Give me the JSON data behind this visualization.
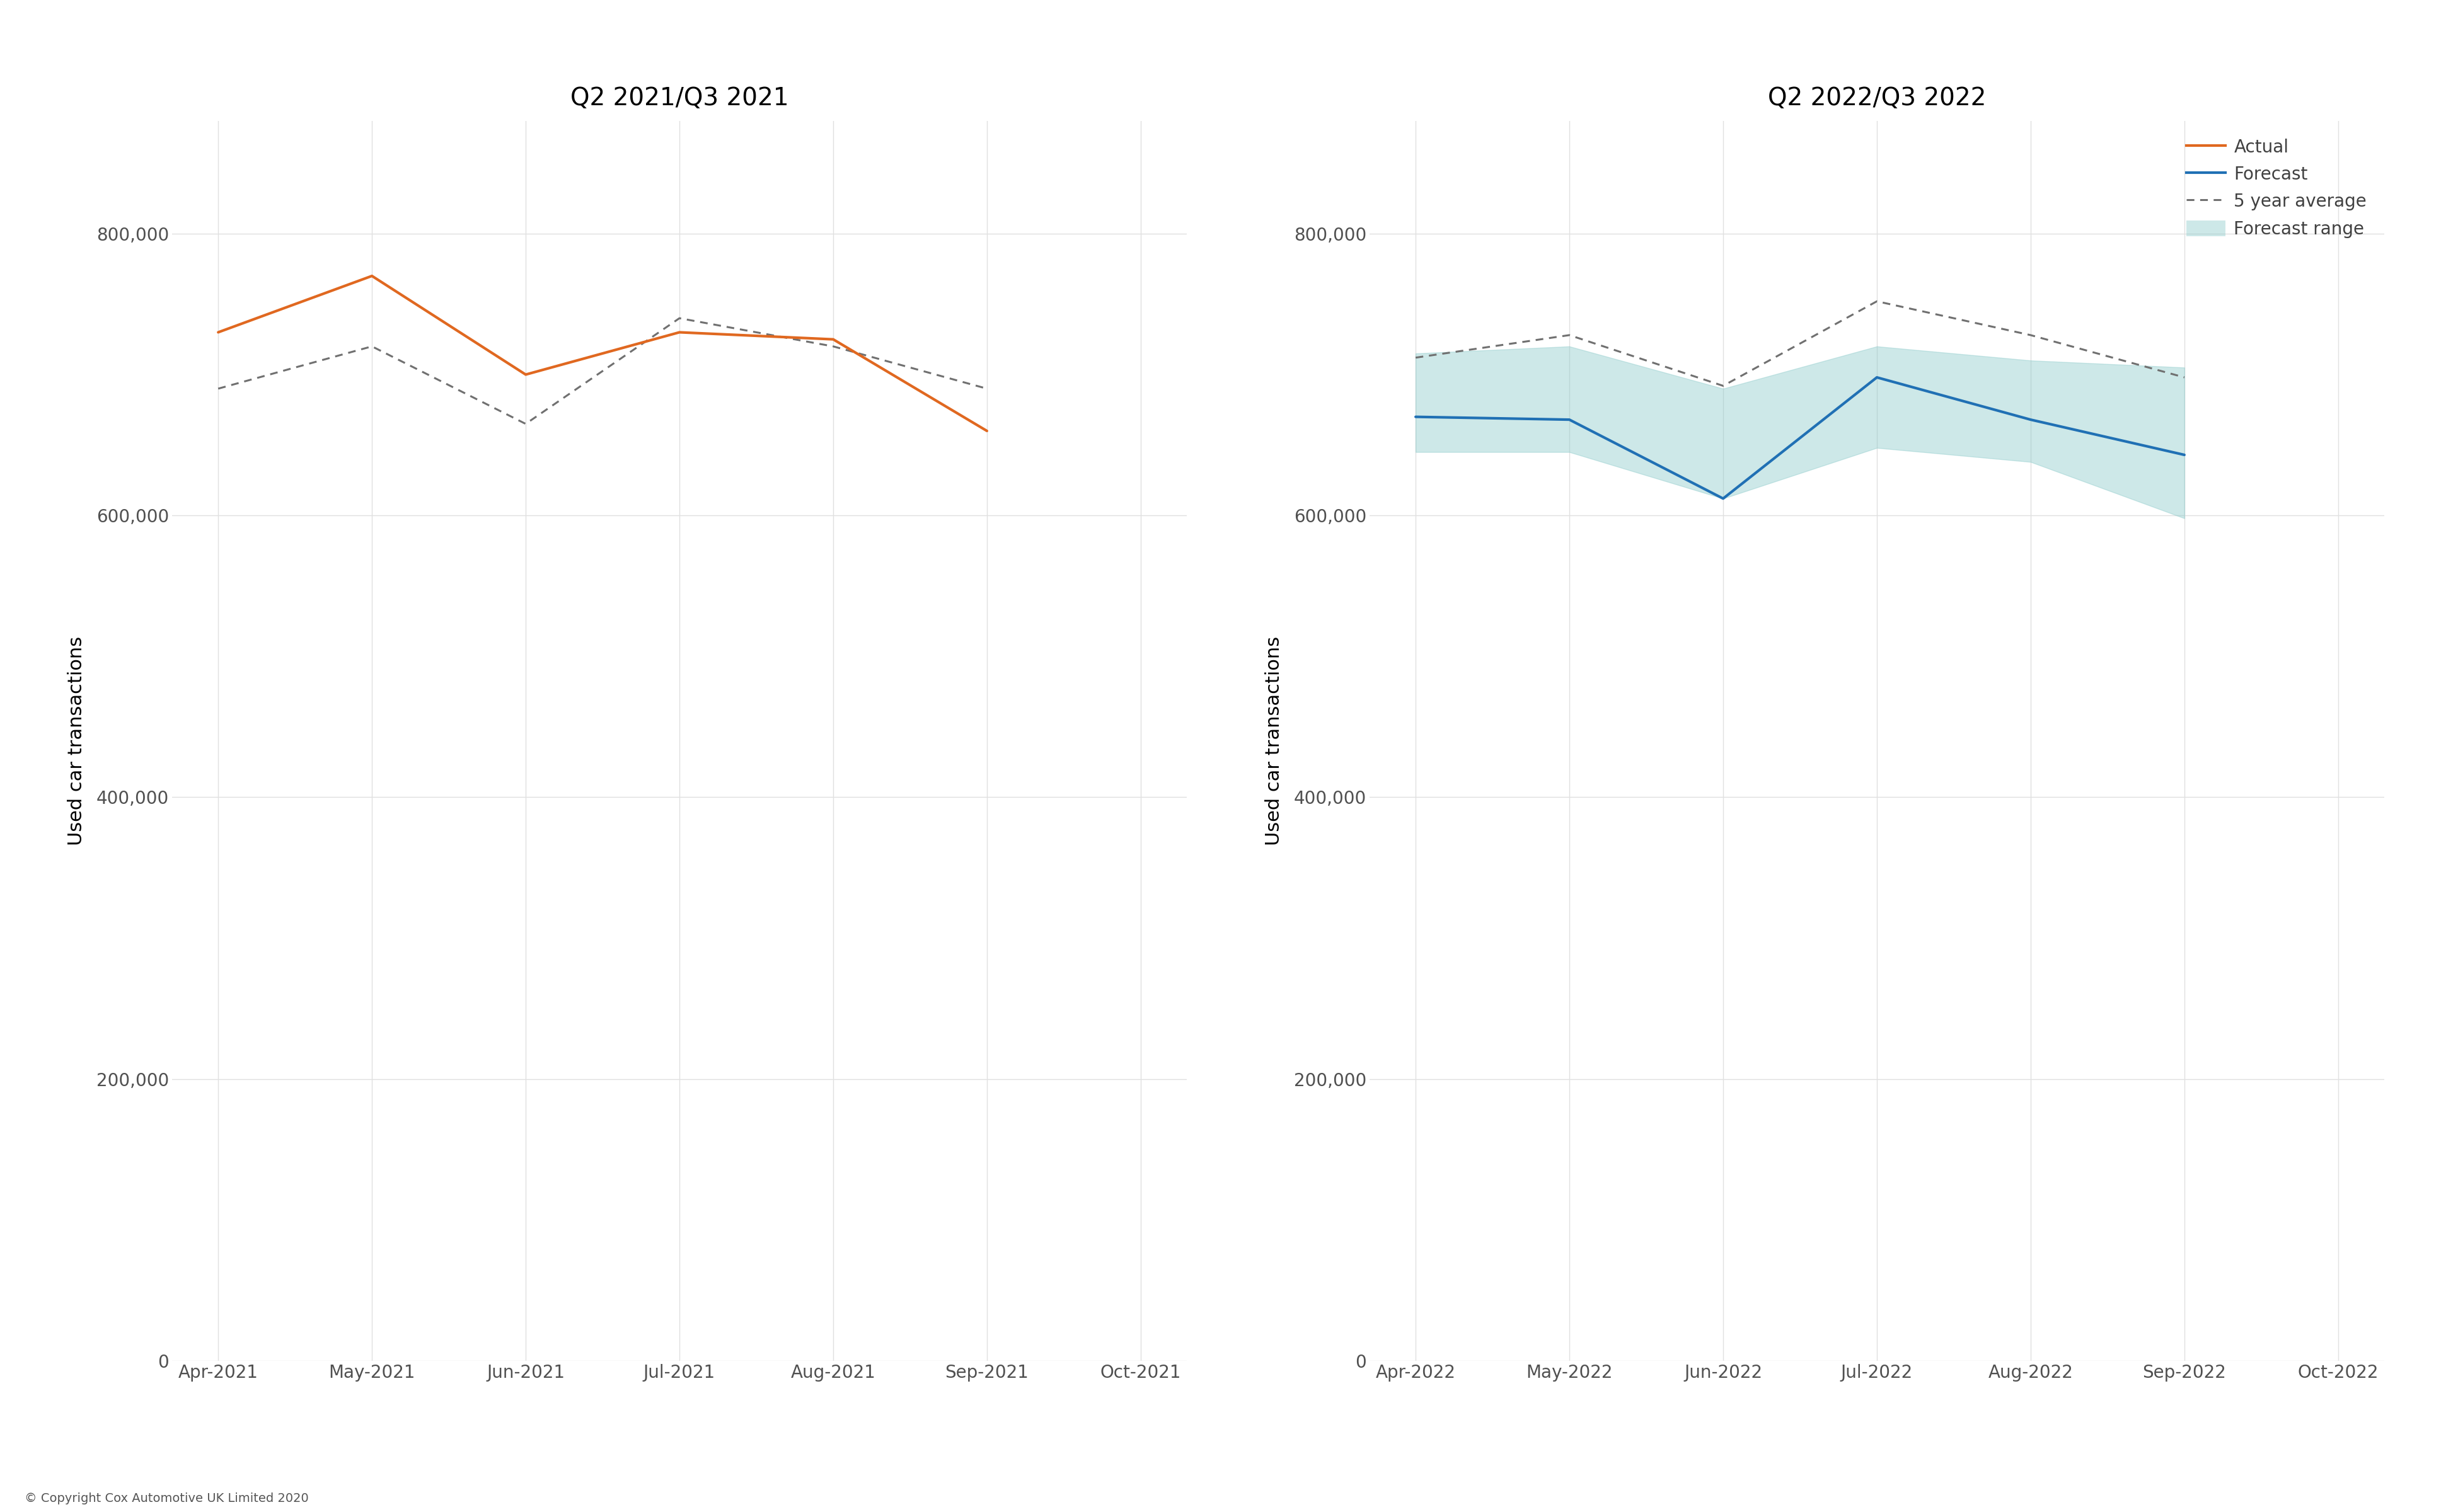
{
  "left_title": "Q2 2021/Q3 2021",
  "right_title": "Q2 2022/Q3 2022",
  "ylabel": "Used car transactions",
  "copyright": "© Copyright Cox Automotive UK Limited 2020",
  "left_x_labels": [
    "Apr-2021",
    "May-2021",
    "Jun-2021",
    "Jul-2021",
    "Aug-2021",
    "Sep-2021",
    "Oct-2021"
  ],
  "right_x_labels": [
    "Apr-2022",
    "May-2022",
    "Jun-2022",
    "Jul-2022",
    "Aug-2022",
    "Sep-2022",
    "Oct-2022"
  ],
  "left_actual": [
    730000,
    770000,
    700000,
    730000,
    725000,
    660000
  ],
  "left_avg": [
    690000,
    720000,
    665000,
    740000,
    720000,
    690000
  ],
  "right_forecast": [
    670000,
    668000,
    612000,
    698000,
    668000,
    643000
  ],
  "right_avg": [
    712000,
    728000,
    692000,
    752000,
    728000,
    698000
  ],
  "right_range_upper": [
    715000,
    720000,
    690000,
    720000,
    710000,
    705000
  ],
  "right_range_lower": [
    645000,
    645000,
    612000,
    648000,
    638000,
    598000
  ],
  "ylim": [
    0,
    880000
  ],
  "yticks": [
    0,
    200000,
    400000,
    600000,
    800000
  ],
  "ytick_labels": [
    "0",
    "200,000",
    "400,000",
    "600,000",
    "800,000"
  ],
  "actual_color": "#E06820",
  "forecast_color": "#2070B4",
  "avg_color": "#707070",
  "range_color": "#90CCCC",
  "range_alpha": 0.45,
  "line_width": 3.0,
  "avg_linewidth": 2.2,
  "avg_dotsize": 8,
  "title_fontsize": 28,
  "tick_fontsize": 20,
  "ylabel_fontsize": 22,
  "legend_fontsize": 20,
  "copyright_fontsize": 14,
  "legend_labels": [
    "Actual",
    "Forecast",
    "5 year average",
    "Forecast range"
  ],
  "background_color": "#ffffff",
  "grid_color": "#e0e0e0"
}
